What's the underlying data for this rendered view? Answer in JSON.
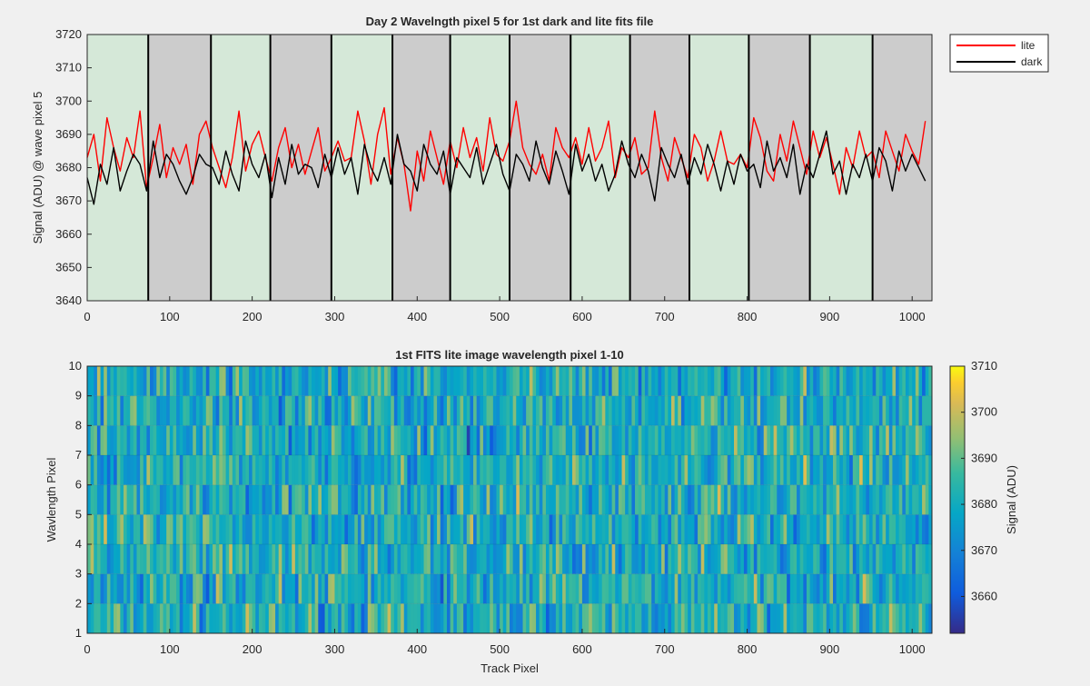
{
  "chart_data": [
    {
      "type": "line",
      "title": "Day 2 Wavelngth pixel 5 for 1st dark and lite fits file",
      "xlabel": "",
      "ylabel": "Signal (ADU) @ wave pixel 5",
      "xlim": [
        0,
        1024
      ],
      "ylim": [
        3640,
        3720
      ],
      "xticks": [
        0,
        100,
        200,
        300,
        400,
        500,
        600,
        700,
        800,
        900,
        1000
      ],
      "yticks": [
        3640,
        3650,
        3660,
        3670,
        3680,
        3690,
        3700,
        3710,
        3720
      ],
      "grid": false,
      "legend_location": "outside top-right",
      "background_bands": [
        {
          "from": 0,
          "to": 74,
          "color": "#d5e8d8"
        },
        {
          "from": 74,
          "to": 150,
          "color": "#cccccc"
        },
        {
          "from": 150,
          "to": 222,
          "color": "#d5e8d8"
        },
        {
          "from": 222,
          "to": 296,
          "color": "#cccccc"
        },
        {
          "from": 296,
          "to": 370,
          "color": "#d5e8d8"
        },
        {
          "from": 370,
          "to": 440,
          "color": "#cccccc"
        },
        {
          "from": 440,
          "to": 512,
          "color": "#d5e8d8"
        },
        {
          "from": 512,
          "to": 586,
          "color": "#cccccc"
        },
        {
          "from": 586,
          "to": 658,
          "color": "#d5e8d8"
        },
        {
          "from": 658,
          "to": 730,
          "color": "#cccccc"
        },
        {
          "from": 730,
          "to": 802,
          "color": "#d5e8d8"
        },
        {
          "from": 802,
          "to": 876,
          "color": "#cccccc"
        },
        {
          "from": 876,
          "to": 952,
          "color": "#d5e8d8"
        },
        {
          "from": 952,
          "to": 1024,
          "color": "#cccccc"
        }
      ],
      "band_boundaries": [
        74,
        150,
        222,
        296,
        370,
        440,
        512,
        586,
        658,
        730,
        802,
        876,
        952
      ],
      "series": [
        {
          "name": "lite",
          "color": "#ff0000",
          "x_start": 0,
          "x_step": 8,
          "values": [
            3683,
            3690,
            3676,
            3695,
            3686,
            3679,
            3689,
            3683,
            3697,
            3674,
            3683,
            3693,
            3677,
            3686,
            3681,
            3687,
            3675,
            3690,
            3694,
            3686,
            3680,
            3674,
            3683,
            3697,
            3679,
            3687,
            3691,
            3683,
            3676,
            3686,
            3692,
            3680,
            3687,
            3678,
            3685,
            3692,
            3679,
            3683,
            3688,
            3682,
            3683,
            3697,
            3688,
            3675,
            3690,
            3698,
            3678,
            3689,
            3681,
            3667,
            3685,
            3676,
            3691,
            3683,
            3675,
            3688,
            3680,
            3692,
            3683,
            3689,
            3679,
            3695,
            3684,
            3682,
            3688,
            3700,
            3686,
            3681,
            3678,
            3684,
            3676,
            3692,
            3686,
            3683,
            3689,
            3681,
            3692,
            3682,
            3686,
            3694,
            3677,
            3686,
            3683,
            3689,
            3678,
            3680,
            3697,
            3683,
            3676,
            3689,
            3683,
            3677,
            3690,
            3686,
            3676,
            3682,
            3691,
            3682,
            3681,
            3684,
            3680,
            3695,
            3689,
            3679,
            3676,
            3690,
            3682,
            3694,
            3686,
            3678,
            3691,
            3683,
            3689,
            3681,
            3672,
            3686,
            3680,
            3691,
            3683,
            3685,
            3677,
            3691,
            3685,
            3679,
            3690,
            3685,
            3681,
            3694
          ]
        },
        {
          "name": "dark",
          "color": "#000000",
          "x_start": 0,
          "x_step": 8,
          "values": [
            3677,
            3669,
            3681,
            3675,
            3686,
            3673,
            3679,
            3684,
            3681,
            3673,
            3688,
            3677,
            3684,
            3681,
            3676,
            3672,
            3677,
            3684,
            3681,
            3680,
            3675,
            3685,
            3678,
            3673,
            3688,
            3681,
            3677,
            3684,
            3671,
            3683,
            3675,
            3687,
            3678,
            3681,
            3680,
            3674,
            3684,
            3677,
            3686,
            3678,
            3683,
            3672,
            3687,
            3680,
            3676,
            3683,
            3675,
            3690,
            3681,
            3679,
            3673,
            3687,
            3681,
            3678,
            3685,
            3672,
            3683,
            3680,
            3677,
            3686,
            3675,
            3681,
            3687,
            3678,
            3673,
            3684,
            3681,
            3676,
            3688,
            3680,
            3675,
            3685,
            3679,
            3672,
            3687,
            3679,
            3684,
            3676,
            3681,
            3673,
            3678,
            3688,
            3681,
            3677,
            3684,
            3679,
            3670,
            3686,
            3681,
            3677,
            3684,
            3675,
            3683,
            3678,
            3687,
            3681,
            3673,
            3682,
            3675,
            3684,
            3679,
            3681,
            3674,
            3688,
            3679,
            3683,
            3677,
            3687,
            3672,
            3681,
            3677,
            3684,
            3691,
            3678,
            3682,
            3672,
            3681,
            3677,
            3684,
            3676,
            3686,
            3682,
            3673,
            3685,
            3679,
            3684,
            3680,
            3676
          ]
        }
      ]
    },
    {
      "type": "heatmap",
      "title": "1st FITS lite image wavelength pixel 1-10",
      "xlabel": "Track Pixel",
      "ylabel": "Wavlength Pixel",
      "xlim": [
        0,
        1024
      ],
      "ylim": [
        1,
        10
      ],
      "xticks": [
        0,
        100,
        200,
        300,
        400,
        500,
        600,
        700,
        800,
        900,
        1000
      ],
      "yticks": [
        1,
        2,
        3,
        4,
        5,
        6,
        7,
        8,
        9,
        10
      ],
      "colorbar": {
        "label": "Signal (ADU)",
        "range": [
          3652,
          3710
        ],
        "ticks": [
          3660,
          3670,
          3680,
          3690,
          3700,
          3710
        ],
        "colormap": "parula"
      },
      "rows": 9,
      "columns": 256,
      "cell_values_note": ""
    }
  ]
}
